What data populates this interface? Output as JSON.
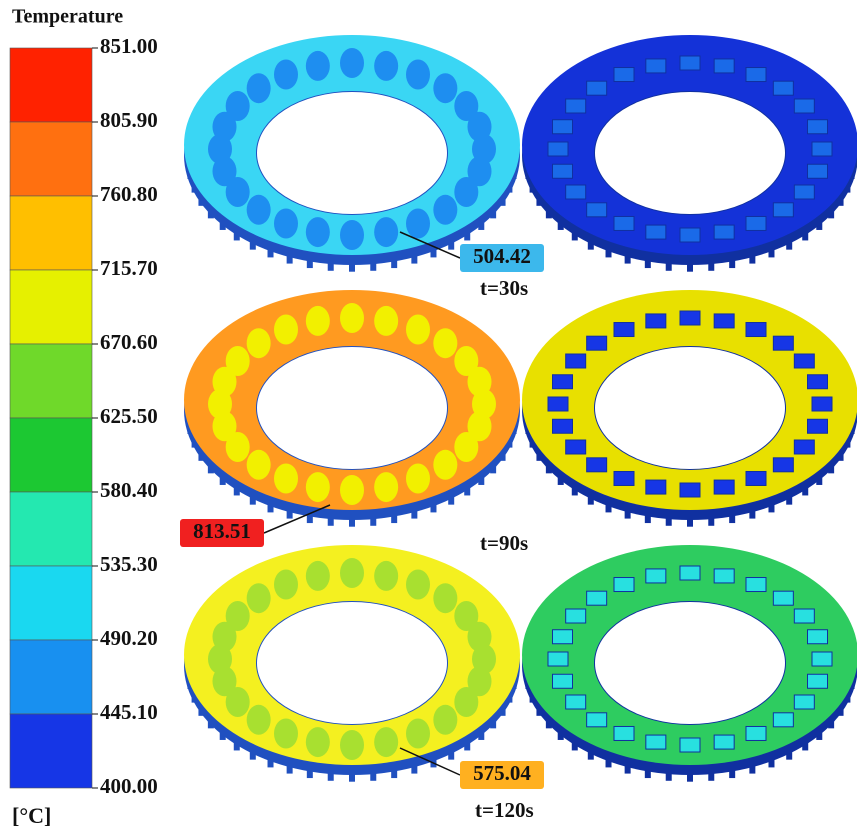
{
  "colorbar": {
    "title": "Temperature",
    "unit": "[°C]",
    "ticks": [
      "851.00",
      "805.90",
      "760.80",
      "715.70",
      "670.60",
      "625.50",
      "580.40",
      "535.30",
      "490.20",
      "445.10",
      "400.00"
    ],
    "colors": [
      "#ff2200",
      "#ff7010",
      "#ffbf00",
      "#e6f000",
      "#6fd92a",
      "#1cc832",
      "#24e8b0",
      "#1ad8f0",
      "#1890f0",
      "#1636e6"
    ]
  },
  "panels": [
    {
      "time": "t=30s",
      "probe": "504.42",
      "probe_color": "#3cb8ec",
      "left_color": "#3ad6f4",
      "left_inner": "#1e8ef0",
      "right_color": "#1432d8",
      "right_spot": "#1a6ae8"
    },
    {
      "time": "t=90s",
      "probe": "813.51",
      "probe_color": "#f02020",
      "left_color": "#ff9a20",
      "left_inner": "#f2f000",
      "right_color": "#e8e000",
      "right_spot": "#1636e6"
    },
    {
      "time": "t=120s",
      "probe": "575.04",
      "probe_color": "#ffb020",
      "left_color": "#f4f020",
      "left_inner": "#a8e030",
      "right_color": "#2ecc60",
      "right_spot": "#28e0e0"
    }
  ]
}
